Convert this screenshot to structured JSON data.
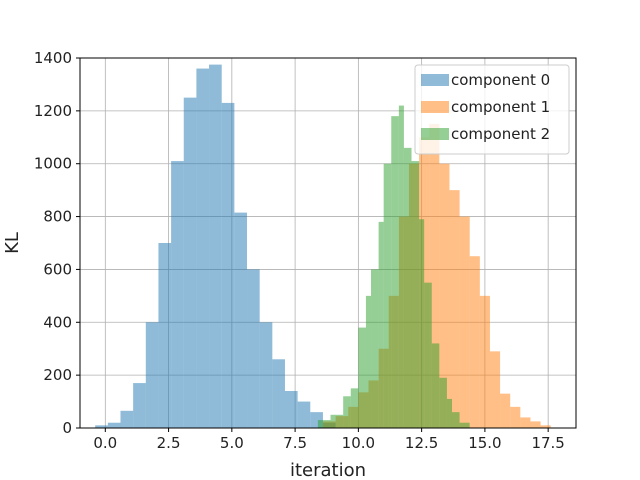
{
  "chart_data": {
    "type": "bar",
    "title": "",
    "xlabel": "iteration",
    "ylabel": "KL",
    "xlim": [
      -1.0,
      18.6
    ],
    "ylim": [
      0,
      1400
    ],
    "xticks": [
      0.0,
      2.5,
      5.0,
      7.5,
      10.0,
      12.5,
      15.0,
      17.5
    ],
    "xtick_labels": [
      "0.0",
      "2.5",
      "5.0",
      "7.5",
      "10.0",
      "12.5",
      "15.0",
      "17.5"
    ],
    "yticks": [
      0,
      200,
      400,
      600,
      800,
      1000,
      1200,
      1400
    ],
    "ytick_labels": [
      "0",
      "200",
      "400",
      "600",
      "800",
      "1000",
      "1200",
      "1400"
    ],
    "grid": true,
    "legend_position": "top-right",
    "bar_opacity": 0.5,
    "series": [
      {
        "name": "component 0",
        "color": "#1f77b4",
        "bin_edges": [
          -0.4,
          0.1,
          0.6,
          1.1,
          1.6,
          2.1,
          2.6,
          3.1,
          3.6,
          4.1,
          4.6,
          5.1,
          5.6,
          6.1,
          6.6,
          7.1,
          7.6,
          8.1,
          8.6,
          9.1
        ],
        "counts": [
          10,
          20,
          65,
          170,
          400,
          700,
          1010,
          1250,
          1360,
          1375,
          1230,
          815,
          600,
          400,
          260,
          140,
          100,
          60,
          20
        ]
      },
      {
        "name": "component 1",
        "color": "#ff7f0e",
        "bin_edges": [
          8.6,
          9.1,
          9.6,
          10.0,
          10.4,
          10.8,
          11.2,
          11.6,
          12.0,
          12.4,
          12.8,
          13.2,
          13.6,
          14.0,
          14.4,
          14.8,
          15.2,
          15.6,
          16.0,
          16.4,
          16.8,
          17.2,
          17.6
        ],
        "counts": [
          25,
          45,
          80,
          135,
          180,
          300,
          500,
          800,
          1000,
          1100,
          1150,
          1000,
          900,
          800,
          650,
          500,
          290,
          130,
          80,
          40,
          25,
          10
        ]
      },
      {
        "name": "component 2",
        "color": "#2ca02c",
        "bin_edges": [
          8.4,
          8.9,
          9.4,
          9.7,
          10.0,
          10.3,
          10.5,
          10.8,
          11.0,
          11.3,
          11.6,
          11.8,
          12.1,
          12.4,
          12.6,
          12.9,
          13.2,
          13.5,
          13.7,
          14.0,
          14.4
        ],
        "counts": [
          30,
          50,
          120,
          150,
          380,
          500,
          600,
          780,
          1000,
          1180,
          1220,
          1060,
          1010,
          790,
          550,
          320,
          190,
          110,
          60,
          20
        ]
      }
    ]
  }
}
